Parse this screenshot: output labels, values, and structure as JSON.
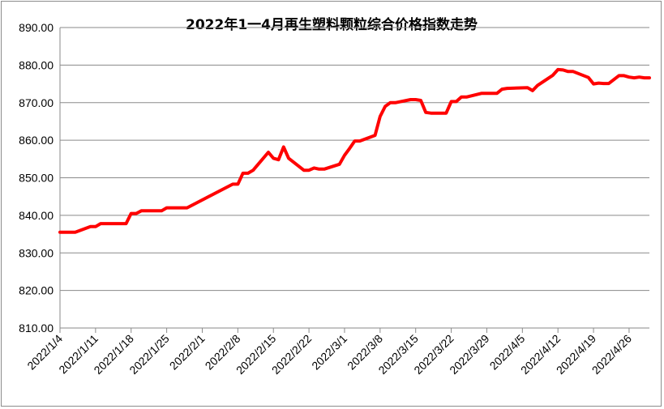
{
  "chart_data": {
    "type": "line",
    "title": "2022年1一4月再生塑料颗粒综合价格指数走势",
    "xlabel": "",
    "ylabel": "",
    "ylim": [
      810,
      890
    ],
    "yticks": [
      "810.00",
      "820.00",
      "830.00",
      "840.00",
      "850.00",
      "860.00",
      "870.00",
      "880.00",
      "890.00"
    ],
    "xticks": [
      "2022/1/4",
      "2022/1/11",
      "2022/1/18",
      "2022/1/25",
      "2022/2/1",
      "2022/2/8",
      "2022/2/15",
      "2022/2/22",
      "2022/3/1",
      "2022/3/8",
      "2022/3/15",
      "2022/3/22",
      "2022/3/29",
      "2022/4/5",
      "2022/4/12",
      "2022/4/19",
      "2022/4/26"
    ],
    "x_start": "2022/1/4",
    "x_end": "2022/4/30",
    "grid": true,
    "legend": "none",
    "line_color": "#ff0000",
    "series": [
      {
        "values": [
          [
            "2022/1/4",
            835.5
          ],
          [
            "2022/1/5",
            835.5
          ],
          [
            "2022/1/6",
            835.5
          ],
          [
            "2022/1/7",
            835.5
          ],
          [
            "2022/1/10",
            837.0
          ],
          [
            "2022/1/11",
            837.0
          ],
          [
            "2022/1/12",
            837.8
          ],
          [
            "2022/1/13",
            837.8
          ],
          [
            "2022/1/14",
            837.8
          ],
          [
            "2022/1/17",
            837.8
          ],
          [
            "2022/1/18",
            840.5
          ],
          [
            "2022/1/19",
            840.5
          ],
          [
            "2022/1/20",
            841.2
          ],
          [
            "2022/1/21",
            841.2
          ],
          [
            "2022/1/24",
            841.2
          ],
          [
            "2022/1/25",
            842.0
          ],
          [
            "2022/1/26",
            842.0
          ],
          [
            "2022/1/27",
            842.0
          ],
          [
            "2022/1/28",
            842.0
          ],
          [
            "2022/1/29",
            842.0
          ],
          [
            "2022/2/7",
            848.3
          ],
          [
            "2022/2/8",
            848.3
          ],
          [
            "2022/2/9",
            851.2
          ],
          [
            "2022/2/10",
            851.2
          ],
          [
            "2022/2/11",
            852.0
          ],
          [
            "2022/2/14",
            856.8
          ],
          [
            "2022/2/15",
            855.2
          ],
          [
            "2022/2/16",
            854.8
          ],
          [
            "2022/2/17",
            858.2
          ],
          [
            "2022/2/18",
            855.2
          ],
          [
            "2022/2/21",
            852.0
          ],
          [
            "2022/2/22",
            852.0
          ],
          [
            "2022/2/23",
            852.6
          ],
          [
            "2022/2/24",
            852.3
          ],
          [
            "2022/2/25",
            852.3
          ],
          [
            "2022/2/28",
            853.6
          ],
          [
            "2022/3/1",
            856.0
          ],
          [
            "2022/3/2",
            857.8
          ],
          [
            "2022/3/3",
            859.8
          ],
          [
            "2022/3/4",
            859.8
          ],
          [
            "2022/3/7",
            861.3
          ],
          [
            "2022/3/8",
            866.3
          ],
          [
            "2022/3/9",
            869.0
          ],
          [
            "2022/3/10",
            870.0
          ],
          [
            "2022/3/11",
            870.0
          ],
          [
            "2022/3/14",
            870.8
          ],
          [
            "2022/3/15",
            870.8
          ],
          [
            "2022/3/16",
            870.6
          ],
          [
            "2022/3/17",
            867.4
          ],
          [
            "2022/3/18",
            867.2
          ],
          [
            "2022/3/21",
            867.2
          ],
          [
            "2022/3/22",
            870.3
          ],
          [
            "2022/3/23",
            870.3
          ],
          [
            "2022/3/24",
            871.5
          ],
          [
            "2022/3/25",
            871.5
          ],
          [
            "2022/3/28",
            872.5
          ],
          [
            "2022/3/29",
            872.5
          ],
          [
            "2022/3/30",
            872.5
          ],
          [
            "2022/3/31",
            872.5
          ],
          [
            "2022/4/1",
            873.6
          ],
          [
            "2022/4/2",
            873.8
          ],
          [
            "2022/4/6",
            874.0
          ],
          [
            "2022/4/7",
            873.2
          ],
          [
            "2022/4/8",
            874.6
          ],
          [
            "2022/4/11",
            877.3
          ],
          [
            "2022/4/12",
            878.8
          ],
          [
            "2022/4/13",
            878.7
          ],
          [
            "2022/4/14",
            878.3
          ],
          [
            "2022/4/15",
            878.3
          ],
          [
            "2022/4/18",
            876.7
          ],
          [
            "2022/4/19",
            875.0
          ],
          [
            "2022/4/20",
            875.2
          ],
          [
            "2022/4/21",
            875.1
          ],
          [
            "2022/4/22",
            875.1
          ],
          [
            "2022/4/24",
            877.2
          ],
          [
            "2022/4/25",
            877.2
          ],
          [
            "2022/4/26",
            876.8
          ],
          [
            "2022/4/27",
            876.6
          ],
          [
            "2022/4/28",
            876.8
          ],
          [
            "2022/4/29",
            876.6
          ],
          [
            "2022/4/30",
            876.6
          ]
        ]
      }
    ]
  }
}
